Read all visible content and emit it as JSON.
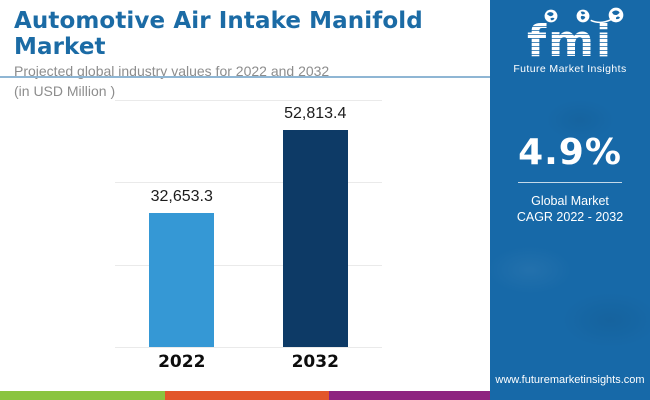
{
  "header": {
    "title": "Automotive Air Intake Manifold Market",
    "subtitle_line1": "Projected global industry values for 2022 and 2032",
    "subtitle_line2": "(in USD Million )"
  },
  "chart_data": {
    "type": "bar",
    "categories": [
      "2022",
      "2032"
    ],
    "values": [
      32653.3,
      52813.4
    ],
    "value_labels": [
      "32,653.3",
      "52,813.4"
    ],
    "bar_colors": [
      "#3598d5",
      "#0d3a66"
    ],
    "title": "Automotive Air Intake Manifold Market",
    "xlabel": "",
    "ylabel": "",
    "ylim": [
      0,
      60000
    ],
    "gridline_values": [
      0,
      20000,
      40000,
      60000
    ],
    "grid": "horizontal",
    "legend": "none"
  },
  "sidebar": {
    "logo": {
      "text": "fmi",
      "tagline": "Future Market Insights",
      "globe_icons": [
        "globe-americas-icon",
        "globe-europe-icon",
        "globe-asia-icon"
      ]
    },
    "stat": {
      "value": "4.9%",
      "caption_line1": "Global Market",
      "caption_line2": "CAGR 2022 - 2032"
    },
    "website": "www.futuremarketinsights.com"
  },
  "footer_strip": {
    "colors": [
      "#8ac440",
      "#e2572b",
      "#8e2480"
    ]
  },
  "colors": {
    "title_blue": "#1b6ba5",
    "subtitle_gray": "#8d8d8d",
    "header_rule_blue": "#8fb6d4",
    "bar_2022_blue": "#3598d5",
    "bar_2032_navy": "#0d3a66",
    "sidebar_blue": "#1769a8",
    "gridline_gray": "#eaeaea"
  }
}
